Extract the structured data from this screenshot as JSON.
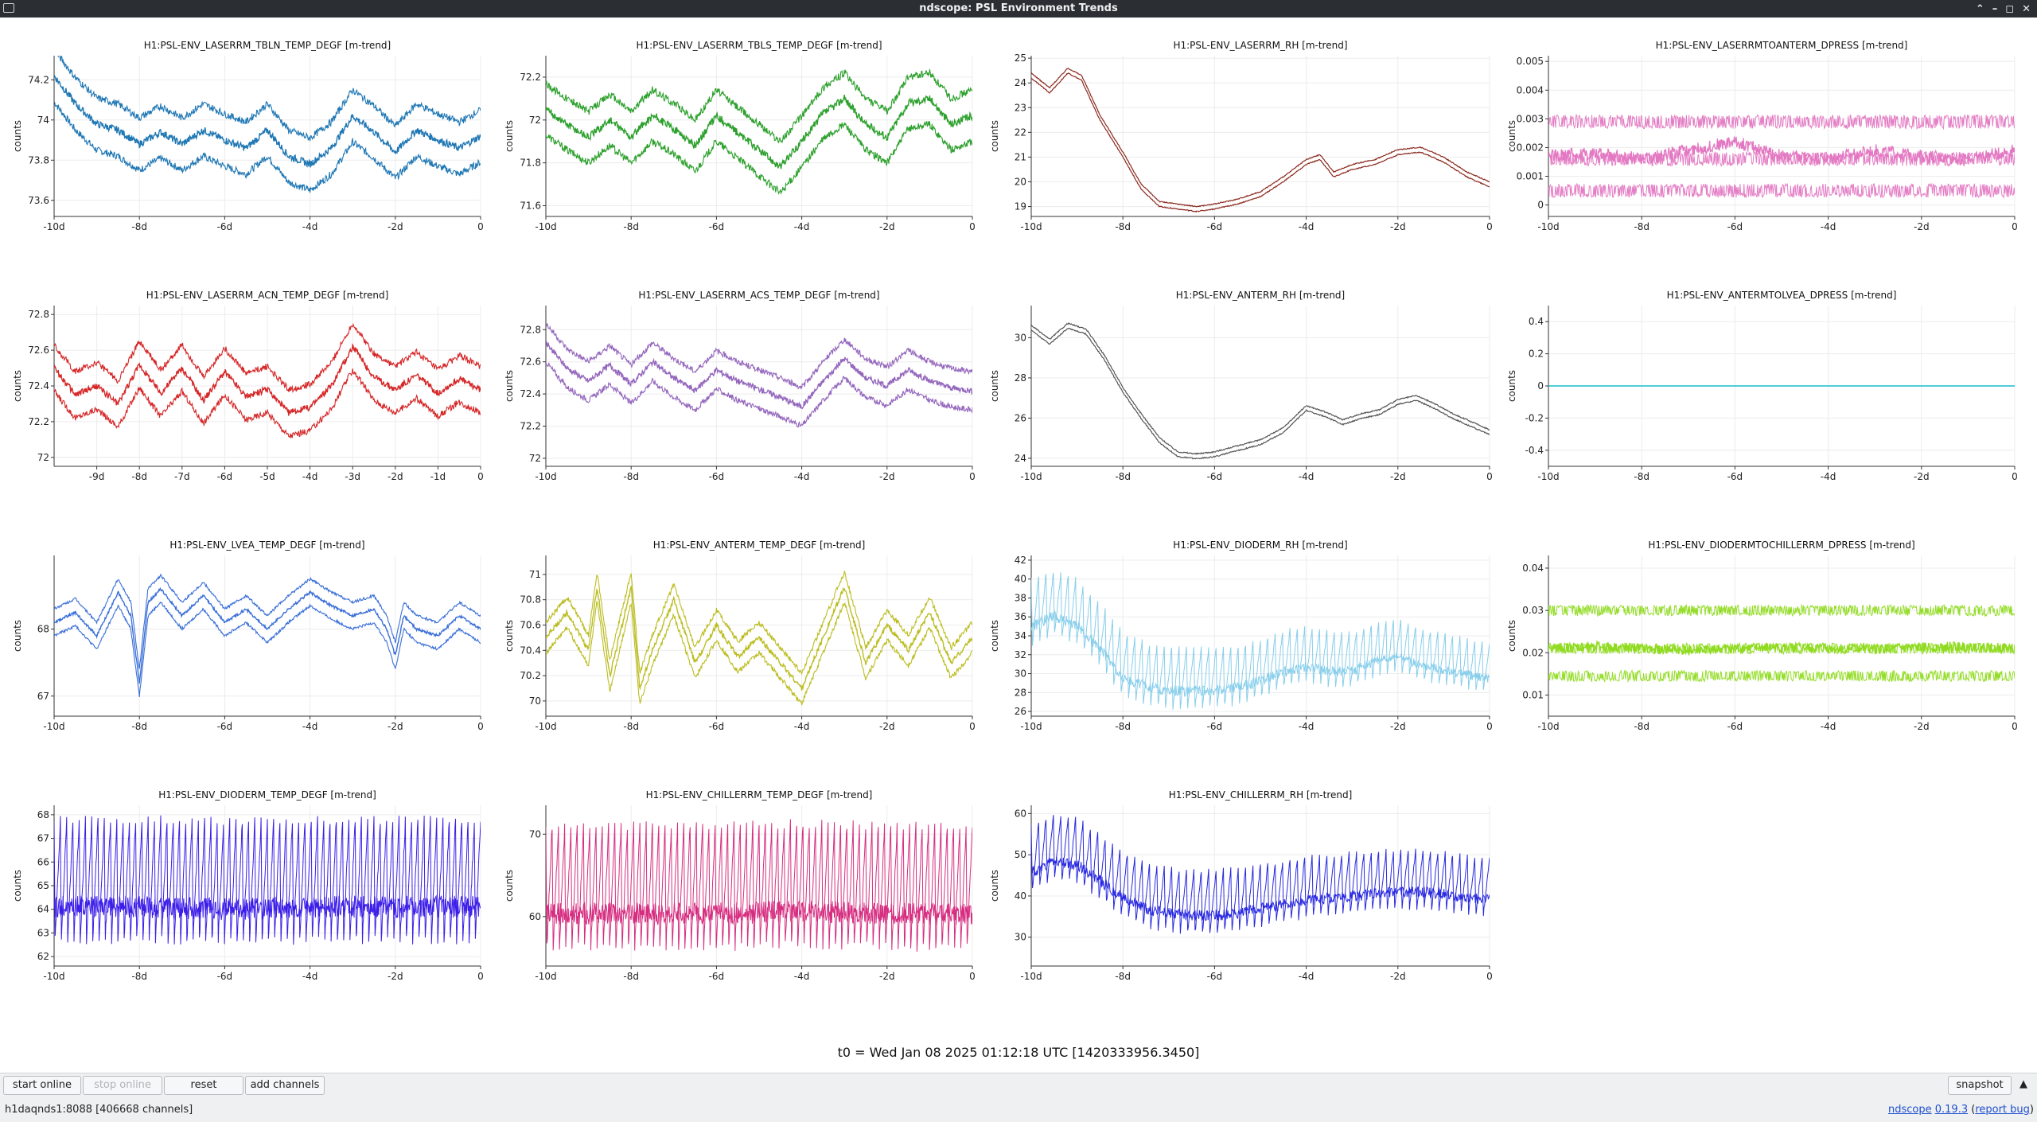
{
  "window": {
    "title": "ndscope: PSL Environment Trends"
  },
  "toolbar": {
    "start_online": "start online",
    "stop_online": "stop online",
    "reset": "reset",
    "add_channels": "add channels",
    "snapshot": "snapshot",
    "collapse_arrow": "▲"
  },
  "t0_label": "t0 = Wed Jan 08 2025 01:12:18 UTC [1420333956.3450]",
  "status": {
    "server": "h1daqnds1:8088  [406668 channels]",
    "app_name": "ndscope",
    "version": "0.19.3",
    "open_paren": " (",
    "report_bug": "report bug",
    "close_paren": ")"
  },
  "ylabel": "counts",
  "panels": [
    {
      "title": "H1:PSL-ENV_LASERRM_TBLN_TEMP_DEGF [m-trend]",
      "color": "#1f77b4",
      "xticks": [
        "-10d",
        "-8d",
        "-6d",
        "-4d",
        "-2d",
        "0"
      ],
      "yticks": [
        "73.6",
        "73.8",
        "74",
        "74.2"
      ],
      "chart_data": {
        "type": "line",
        "ylim": [
          73.52,
          74.32
        ],
        "xlim": [
          -10,
          0
        ],
        "kind": "band",
        "band_offset": 0.13,
        "spike_amp": 0.018,
        "x": [
          -10,
          -9.5,
          -9,
          -8.5,
          -8,
          -7.5,
          -7,
          -6.5,
          -6,
          -5.5,
          -5,
          -4.5,
          -4,
          -3.5,
          -3,
          -2.5,
          -2,
          -1.5,
          -1,
          -0.5,
          0
        ],
        "y": [
          74.22,
          74.08,
          73.98,
          73.95,
          73.88,
          73.94,
          73.88,
          73.95,
          73.9,
          73.86,
          73.95,
          73.82,
          73.78,
          73.86,
          74.02,
          73.94,
          73.84,
          73.95,
          73.9,
          73.86,
          73.92
        ]
      }
    },
    {
      "title": "H1:PSL-ENV_LASERRM_TBLS_TEMP_DEGF [m-trend]",
      "color": "#2ca02c",
      "xticks": [
        "-10d",
        "-8d",
        "-6d",
        "-4d",
        "-2d",
        "0"
      ],
      "yticks": [
        "71.6",
        "71.8",
        "72",
        "72.2"
      ],
      "chart_data": {
        "type": "line",
        "ylim": [
          71.55,
          72.3
        ],
        "xlim": [
          -10,
          0
        ],
        "kind": "band",
        "band_offset": 0.12,
        "spike_amp": 0.018,
        "x": [
          -10,
          -9.5,
          -9,
          -8.5,
          -8,
          -7.5,
          -7,
          -6.5,
          -6,
          -5.5,
          -5,
          -4.5,
          -4,
          -3.5,
          -3,
          -2.5,
          -2,
          -1.5,
          -1,
          -0.5,
          0
        ],
        "y": [
          72.05,
          71.98,
          71.92,
          72.0,
          71.92,
          72.02,
          71.96,
          71.88,
          72.02,
          71.94,
          71.86,
          71.78,
          71.9,
          72.03,
          72.1,
          71.98,
          71.92,
          72.08,
          72.1,
          71.98,
          72.02
        ]
      }
    },
    {
      "title": "H1:PSL-ENV_LASERRM_RH [m-trend]",
      "color": "#8b2a1f",
      "xticks": [
        "-10d",
        "-8d",
        "-6d",
        "-4d",
        "-2d",
        "0"
      ],
      "yticks": [
        "19",
        "20",
        "21",
        "22",
        "23",
        "24",
        "25"
      ],
      "chart_data": {
        "type": "line",
        "ylim": [
          18.6,
          25.1
        ],
        "xlim": [
          -10,
          0
        ],
        "kind": "thin",
        "band_offset": 0.1,
        "spike_amp": 0.02,
        "x": [
          -10,
          -9.6,
          -9.2,
          -8.9,
          -8.5,
          -8,
          -7.6,
          -7.2,
          -6.8,
          -6.4,
          -6,
          -5.5,
          -5,
          -4.5,
          -4,
          -3.7,
          -3.4,
          -3,
          -2.5,
          -2,
          -1.5,
          -1,
          -0.5,
          0
        ],
        "y": [
          24.3,
          23.7,
          24.5,
          24.2,
          22.6,
          21.1,
          19.8,
          19.1,
          19.0,
          18.9,
          19.0,
          19.2,
          19.5,
          20.1,
          20.8,
          21.0,
          20.3,
          20.6,
          20.8,
          21.2,
          21.3,
          20.9,
          20.3,
          19.9
        ]
      }
    },
    {
      "title": "H1:PSL-ENV_LASERRMTOANTERM_DPRESS [m-trend]",
      "color": "#e377c2",
      "xticks": [
        "-10d",
        "-8d",
        "-6d",
        "-4d",
        "-2d",
        "0"
      ],
      "yticks": [
        "0",
        "0.001",
        "0.002",
        "0.003",
        "0.004",
        "0.005"
      ],
      "chart_data": {
        "type": "line",
        "ylim": [
          -0.0004,
          0.0052
        ],
        "xlim": [
          -10,
          0
        ],
        "kind": "quantized",
        "levels": [
          0.0005,
          0.0016,
          0.0029
        ],
        "spike_amp": 0.00015,
        "x": [
          -10,
          -9,
          -8,
          -7,
          -6,
          -5,
          -4,
          -3,
          -2,
          -1,
          0
        ],
        "y": [
          0.0017,
          0.0018,
          0.0016,
          0.0019,
          0.0022,
          0.0017,
          0.0016,
          0.0019,
          0.0017,
          0.0016,
          0.0019
        ]
      }
    },
    {
      "title": "H1:PSL-ENV_LASERRM_ACN_TEMP_DEGF [m-trend]",
      "color": "#d62728",
      "xticks": [
        "-9d",
        "-8d",
        "-7d",
        "-6d",
        "-5d",
        "-4d",
        "-3d",
        "-2d",
        "-1d",
        "0"
      ],
      "yticks": [
        "72",
        "72.2",
        "72.4",
        "72.6",
        "72.8"
      ],
      "chart_data": {
        "type": "line",
        "ylim": [
          71.95,
          72.85
        ],
        "xlim": [
          -10,
          0
        ],
        "kind": "band",
        "band_offset": 0.13,
        "spike_amp": 0.018,
        "x": [
          -10,
          -9.5,
          -9,
          -8.5,
          -8,
          -7.5,
          -7,
          -6.5,
          -6,
          -5.5,
          -5,
          -4.5,
          -4,
          -3.5,
          -3,
          -2.5,
          -2,
          -1.5,
          -1,
          -0.5,
          0
        ],
        "y": [
          72.5,
          72.35,
          72.4,
          72.3,
          72.52,
          72.36,
          72.5,
          72.32,
          72.48,
          72.34,
          72.38,
          72.25,
          72.28,
          72.4,
          72.62,
          72.45,
          72.38,
          72.46,
          72.36,
          72.44,
          72.38
        ]
      }
    },
    {
      "title": "H1:PSL-ENV_LASERRM_ACS_TEMP_DEGF [m-trend]",
      "color": "#9467bd",
      "xticks": [
        "-10d",
        "-8d",
        "-6d",
        "-4d",
        "-2d",
        "0"
      ],
      "yticks": [
        "72",
        "72.2",
        "72.4",
        "72.6",
        "72.8"
      ],
      "chart_data": {
        "type": "line",
        "ylim": [
          71.95,
          72.95
        ],
        "xlim": [
          -10,
          0
        ],
        "kind": "band",
        "band_offset": 0.12,
        "spike_amp": 0.018,
        "x": [
          -10,
          -9.5,
          -9,
          -8.5,
          -8,
          -7.5,
          -7,
          -6.5,
          -6,
          -5.5,
          -5,
          -4.5,
          -4,
          -3.5,
          -3,
          -2.5,
          -2,
          -1.5,
          -1,
          -0.5,
          0
        ],
        "y": [
          72.72,
          72.56,
          72.48,
          72.58,
          72.46,
          72.6,
          72.5,
          72.42,
          72.55,
          72.48,
          72.43,
          72.38,
          72.32,
          72.48,
          72.62,
          72.5,
          72.45,
          72.55,
          72.48,
          72.44,
          72.42
        ]
      }
    },
    {
      "title": "H1:PSL-ENV_ANTERM_RH [m-trend]",
      "color": "#555555",
      "xticks": [
        "-10d",
        "-8d",
        "-6d",
        "-4d",
        "-2d",
        "0"
      ],
      "yticks": [
        "24",
        "26",
        "28",
        "30"
      ],
      "chart_data": {
        "type": "line",
        "ylim": [
          23.6,
          31.6
        ],
        "xlim": [
          -10,
          0
        ],
        "kind": "thin",
        "band_offset": 0.12,
        "spike_amp": 0.03,
        "x": [
          -10,
          -9.6,
          -9.2,
          -8.8,
          -8.4,
          -8,
          -7.6,
          -7.2,
          -6.8,
          -6.4,
          -6,
          -5.5,
          -5,
          -4.5,
          -4,
          -3.6,
          -3.2,
          -2.8,
          -2.4,
          -2,
          -1.6,
          -1.2,
          -0.8,
          -0.4,
          0
        ],
        "y": [
          30.5,
          29.8,
          30.6,
          30.3,
          29.0,
          27.4,
          26.1,
          24.9,
          24.2,
          24.1,
          24.2,
          24.5,
          24.8,
          25.4,
          26.5,
          26.2,
          25.8,
          26.1,
          26.3,
          26.8,
          27.0,
          26.6,
          26.1,
          25.7,
          25.3
        ]
      }
    },
    {
      "title": "H1:PSL-ENV_ANTERMTOLVEA_DPRESS [m-trend]",
      "color": "#17becf",
      "xticks": [
        "-10d",
        "-8d",
        "-6d",
        "-4d",
        "-2d",
        "0"
      ],
      "yticks": [
        "-0.4",
        "-0.2",
        "0",
        "0.2",
        "0.4"
      ],
      "chart_data": {
        "type": "line",
        "ylim": [
          -0.5,
          0.5
        ],
        "xlim": [
          -10,
          0
        ],
        "kind": "flat",
        "x": [
          -10,
          0
        ],
        "y": [
          0,
          0
        ]
      }
    },
    {
      "title": "H1:PSL-ENV_LVEA_TEMP_DEGF [m-trend]",
      "color": "#3a6fd8",
      "xticks": [
        "-10d",
        "-8d",
        "-6d",
        "-4d",
        "-2d",
        "0"
      ],
      "yticks": [
        "67",
        "68"
      ],
      "chart_data": {
        "type": "line",
        "ylim": [
          66.7,
          69.1
        ],
        "xlim": [
          -10,
          0
        ],
        "kind": "band",
        "band_offset": 0.2,
        "spike_amp": 0.02,
        "x": [
          -10,
          -9.5,
          -9,
          -8.5,
          -8.2,
          -8,
          -7.8,
          -7.5,
          -7,
          -6.5,
          -6,
          -5.5,
          -5,
          -4.5,
          -4,
          -3.5,
          -3,
          -2.5,
          -2.2,
          -2,
          -1.8,
          -1.5,
          -1,
          -0.5,
          0
        ],
        "y": [
          68.1,
          68.25,
          67.9,
          68.55,
          68.2,
          67.2,
          68.4,
          68.6,
          68.2,
          68.5,
          68.1,
          68.3,
          68.0,
          68.3,
          68.55,
          68.35,
          68.2,
          68.3,
          68.0,
          67.6,
          68.2,
          68.0,
          67.9,
          68.2,
          68.0
        ]
      }
    },
    {
      "title": "H1:PSL-ENV_ANTERM_TEMP_DEGF [m-trend]",
      "color": "#bcbd22",
      "xticks": [
        "-10d",
        "-8d",
        "-6d",
        "-4d",
        "-2d",
        "0"
      ],
      "yticks": [
        "70",
        "70.2",
        "70.4",
        "70.6",
        "70.8",
        "71"
      ],
      "chart_data": {
        "type": "line",
        "ylim": [
          69.88,
          71.15
        ],
        "xlim": [
          -10,
          0
        ],
        "kind": "band",
        "band_offset": 0.12,
        "spike_amp": 0.02,
        "x": [
          -10,
          -9.5,
          -9,
          -8.8,
          -8.5,
          -8,
          -7.8,
          -7.5,
          -7,
          -6.5,
          -6,
          -5.5,
          -5,
          -4.5,
          -4,
          -3.5,
          -3,
          -2.5,
          -2,
          -1.5,
          -1,
          -0.5,
          0
        ],
        "y": [
          70.5,
          70.7,
          70.4,
          70.9,
          70.2,
          70.9,
          70.1,
          70.4,
          70.8,
          70.3,
          70.6,
          70.35,
          70.5,
          70.3,
          70.1,
          70.5,
          70.9,
          70.3,
          70.6,
          70.4,
          70.7,
          70.3,
          70.5
        ]
      }
    },
    {
      "title": "H1:PSL-ENV_DIODERM_RH [m-trend]",
      "color": "#87ceeb",
      "xticks": [
        "-10d",
        "-8d",
        "-6d",
        "-4d",
        "-2d",
        "0"
      ],
      "yticks": [
        "26",
        "28",
        "30",
        "32",
        "34",
        "36",
        "38",
        "40",
        "42"
      ],
      "chart_data": {
        "type": "line",
        "ylim": [
          25.5,
          42.5
        ],
        "xlim": [
          -10,
          0
        ],
        "kind": "oscillating",
        "cycles": 62,
        "osc_amp": [
          3.5,
          2.6
        ],
        "x": [
          -10,
          -9.5,
          -9,
          -8.5,
          -8,
          -7.5,
          -7,
          -6.5,
          -6,
          -5.5,
          -5,
          -4.5,
          -4,
          -3.5,
          -3,
          -2.5,
          -2,
          -1.5,
          -1,
          -0.5,
          0
        ],
        "y": [
          36.5,
          37.5,
          36.5,
          34.0,
          31.0,
          30.0,
          29.5,
          29.5,
          29.5,
          29.8,
          30.5,
          31.5,
          32.0,
          31.5,
          31.5,
          32.5,
          33.0,
          32.0,
          31.5,
          31.0,
          30.5
        ]
      }
    },
    {
      "title": "H1:PSL-ENV_DIODERMTOCHILLERRM_DPRESS [m-trend]",
      "color": "#8fdb1f",
      "xticks": [
        "-10d",
        "-8d",
        "-6d",
        "-4d",
        "-2d",
        "0"
      ],
      "yticks": [
        "0.01",
        "0.02",
        "0.03",
        "0.04"
      ],
      "chart_data": {
        "type": "line",
        "ylim": [
          0.005,
          0.043
        ],
        "xlim": [
          -10,
          0
        ],
        "kind": "quantized",
        "levels": [
          0.0145,
          0.021,
          0.03
        ],
        "spike_amp": 0.0008,
        "x": [
          -10,
          -9,
          -8,
          -7,
          -6,
          -5,
          -4,
          -3,
          -2,
          -1,
          0
        ],
        "y": [
          0.021,
          0.0215,
          0.021,
          0.0205,
          0.021,
          0.0212,
          0.021,
          0.0208,
          0.0212,
          0.0215,
          0.021
        ]
      }
    },
    {
      "title": "H1:PSL-ENV_DIODERM_TEMP_DEGF [m-trend]",
      "color": "#3b1fe8",
      "xticks": [
        "-10d",
        "-8d",
        "-6d",
        "-4d",
        "-2d",
        "0"
      ],
      "yticks": [
        "62",
        "63",
        "64",
        "65",
        "66",
        "67",
        "68"
      ],
      "chart_data": {
        "type": "line",
        "ylim": [
          61.6,
          68.4
        ],
        "xlim": [
          -10,
          0
        ],
        "kind": "oscillating",
        "cycles": 68,
        "osc_amp": [
          2.6,
          2.6
        ],
        "x": [
          -10,
          -8,
          -6,
          -4,
          -2,
          0
        ],
        "y": [
          65.2,
          65.2,
          65.1,
          65.2,
          65.2,
          65.2
        ]
      }
    },
    {
      "title": "H1:PSL-ENV_CHILLERRM_TEMP_DEGF [m-trend]",
      "color": "#d62d80",
      "xticks": [
        "-10d",
        "-8d",
        "-6d",
        "-4d",
        "-2d",
        "0"
      ],
      "yticks": [
        "60",
        "70"
      ],
      "chart_data": {
        "type": "line",
        "ylim": [
          54,
          73.5
        ],
        "xlim": [
          -10,
          0
        ],
        "kind": "oscillating",
        "cycles": 68,
        "osc_amp": [
          7.5,
          7.5
        ],
        "x": [
          -10,
          -8,
          -6,
          -4,
          -2,
          0
        ],
        "y": [
          63.5,
          63.5,
          63.5,
          63.8,
          63.5,
          63.5
        ]
      }
    },
    {
      "title": "H1:PSL-ENV_CHILLERRM_RH [m-trend]",
      "color": "#2929e0",
      "xticks": [
        "-10d",
        "-8d",
        "-6d",
        "-4d",
        "-2d",
        "0"
      ],
      "yticks": [
        "30",
        "40",
        "50",
        "60"
      ],
      "chart_data": {
        "type": "line",
        "ylim": [
          23,
          62
        ],
        "xlim": [
          -10,
          0
        ],
        "kind": "oscillating",
        "cycles": 62,
        "osc_amp": [
          8,
          7
        ],
        "x": [
          -10,
          -9.5,
          -9,
          -8.5,
          -8,
          -7.5,
          -7,
          -6.5,
          -6,
          -5.5,
          -5,
          -4.5,
          -4,
          -3.5,
          -3,
          -2.5,
          -2,
          -1.5,
          -1,
          -0.5,
          0
        ],
        "y": [
          49,
          52,
          51,
          47,
          43,
          40,
          39,
          38.5,
          38.5,
          39,
          40,
          41,
          42,
          42.5,
          43,
          43.5,
          44,
          44,
          43.5,
          42.5,
          42
        ]
      }
    }
  ]
}
